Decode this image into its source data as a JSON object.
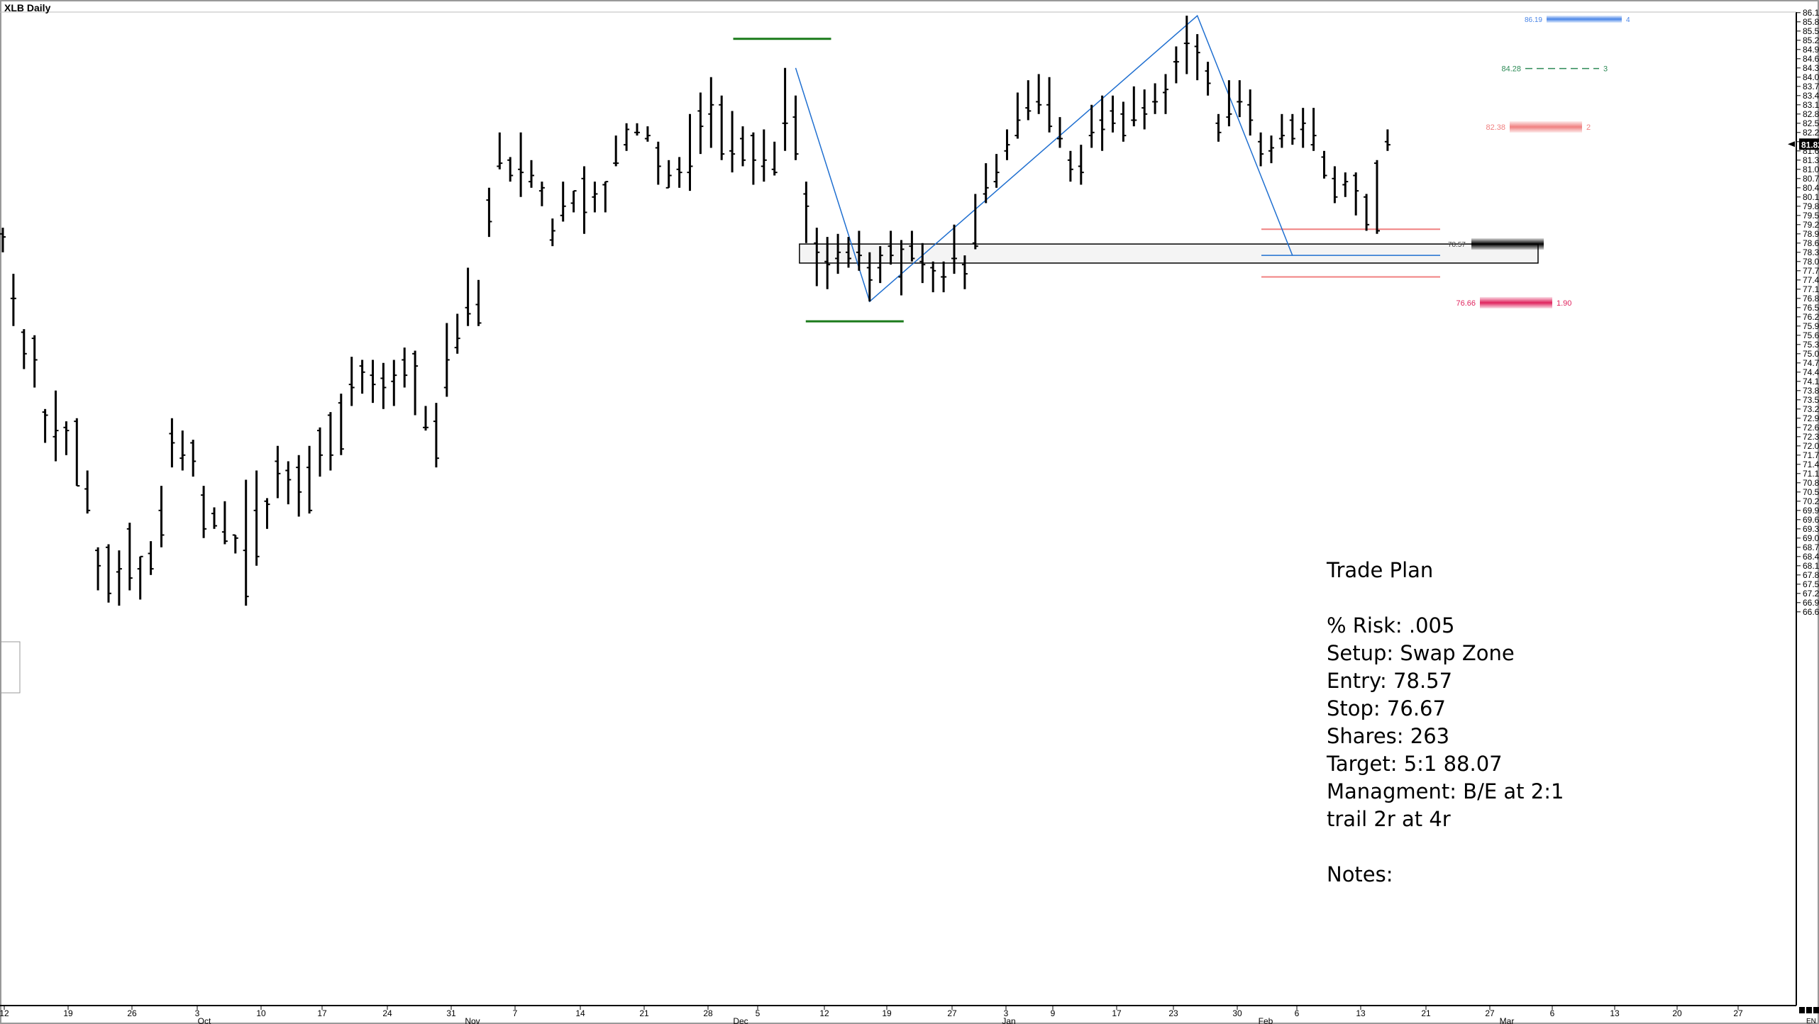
{
  "window": {
    "title": "XLB Daily"
  },
  "colors": {
    "bars": "#000000",
    "swing": "#1f6fd0",
    "pivot": "#1a7a1a",
    "zone_fill": "#f4f4f4",
    "stop_line": "#f08080",
    "target_label": "#2e8b57",
    "stop_label": "#e0245e",
    "entry_label": "#404040"
  },
  "chart_data": {
    "type": "ohlc",
    "title": "XLB Daily",
    "ylim": [
      66.5,
      86.2
    ],
    "y_ticks": [
      "86.10",
      "85.80",
      "85.50",
      "85.20",
      "84.90",
      "84.60",
      "84.30",
      "84.00",
      "83.70",
      "83.40",
      "83.10",
      "82.80",
      "82.50",
      "82.20",
      "81.90",
      "81.60",
      "81.30",
      "81.00",
      "80.70",
      "80.40",
      "80.10",
      "79.80",
      "79.50",
      "79.20",
      "78.90",
      "78.60",
      "78.30",
      "78.00",
      "77.70",
      "77.40",
      "77.10",
      "76.80",
      "76.50",
      "76.20",
      "75.90",
      "75.60",
      "75.30",
      "75.00",
      "74.70",
      "74.40",
      "74.10",
      "73.80",
      "73.50",
      "73.20",
      "72.90",
      "72.60",
      "72.30",
      "72.00",
      "71.70",
      "71.40",
      "71.10",
      "70.80",
      "70.50",
      "70.20",
      "69.90",
      "69.60",
      "69.30",
      "69.00",
      "68.70",
      "68.40",
      "68.10",
      "67.80",
      "67.50",
      "67.20",
      "66.90",
      "66.60"
    ],
    "x_day_ticks": [
      "12",
      "19",
      "26",
      "3",
      "10",
      "17",
      "24",
      "31",
      "7",
      "14",
      "21",
      "28",
      "5",
      "12",
      "19",
      "27",
      "3",
      "9",
      "17",
      "23",
      "30",
      "6",
      "13",
      "21",
      "27",
      "6",
      "13",
      "20",
      "27"
    ],
    "x_month_ticks": [
      "Oct",
      "Nov",
      "Dec",
      "Jan",
      "Feb",
      "Mar"
    ],
    "last_price": "81.82",
    "bars": [
      [
        78.9,
        79.1,
        78.3,
        78.8
      ],
      [
        76.8,
        77.6,
        75.9,
        76.8
      ],
      [
        75.7,
        75.8,
        74.5,
        75.0
      ],
      [
        75.5,
        75.6,
        73.9,
        74.8
      ],
      [
        73.1,
        73.2,
        72.1,
        73.0
      ],
      [
        72.3,
        73.8,
        71.5,
        72.5
      ],
      [
        72.6,
        72.8,
        71.7,
        72.5
      ],
      [
        72.8,
        72.9,
        70.7,
        70.7
      ],
      [
        70.6,
        71.2,
        69.8,
        69.9
      ],
      [
        68.6,
        68.7,
        67.3,
        68.1
      ],
      [
        68.7,
        68.8,
        66.9,
        67.2
      ],
      [
        67.9,
        68.6,
        66.8,
        68.0
      ],
      [
        69.3,
        69.5,
        67.3,
        67.7
      ],
      [
        68.0,
        68.4,
        67.0,
        68.4
      ],
      [
        68.5,
        68.9,
        67.8,
        68.0
      ],
      [
        69.9,
        70.7,
        68.7,
        69.1
      ],
      [
        72.4,
        72.9,
        71.3,
        72.1
      ],
      [
        71.6,
        72.5,
        71.2,
        71.7
      ],
      [
        72.1,
        72.2,
        71.0,
        71.5
      ],
      [
        70.4,
        70.7,
        69.0,
        69.3
      ],
      [
        69.8,
        70.0,
        69.3,
        69.4
      ],
      [
        69.2,
        70.2,
        68.8,
        68.9
      ],
      [
        69.1,
        69.1,
        68.5,
        69.0
      ],
      [
        68.6,
        70.9,
        66.8,
        67.1
      ],
      [
        69.9,
        71.2,
        68.1,
        68.4
      ],
      [
        70.2,
        70.3,
        69.3,
        70.1
      ],
      [
        71.5,
        72.0,
        70.3,
        71.1
      ],
      [
        71.2,
        71.5,
        70.1,
        70.9
      ],
      [
        71.3,
        71.7,
        69.7,
        70.5
      ],
      [
        71.3,
        72.0,
        69.8,
        69.9
      ],
      [
        72.5,
        72.6,
        71.0,
        71.7
      ],
      [
        73.0,
        73.1,
        71.2,
        71.7
      ],
      [
        73.4,
        73.7,
        71.7,
        71.9
      ],
      [
        74.0,
        74.9,
        73.3,
        73.9
      ],
      [
        74.6,
        74.8,
        73.7,
        74.4
      ],
      [
        74.3,
        74.8,
        73.4,
        74.0
      ],
      [
        74.2,
        74.7,
        73.2,
        73.9
      ],
      [
        74.1,
        74.8,
        73.3,
        74.3
      ],
      [
        74.8,
        75.2,
        73.9,
        74.3
      ],
      [
        75.0,
        75.1,
        73.0,
        74.6
      ],
      [
        72.6,
        73.3,
        72.5,
        72.6
      ],
      [
        72.8,
        73.4,
        71.3,
        71.6
      ],
      [
        73.9,
        76.0,
        73.6,
        74.8
      ],
      [
        75.2,
        76.3,
        75.0,
        75.5
      ],
      [
        76.5,
        77.8,
        75.9,
        76.3
      ],
      [
        76.6,
        77.4,
        75.9,
        76.0
      ],
      [
        80.0,
        80.4,
        78.8,
        79.3
      ],
      [
        81.1,
        82.2,
        81.0,
        81.2
      ],
      [
        81.3,
        81.4,
        80.6,
        80.8
      ],
      [
        81.0,
        82.2,
        80.1,
        80.9
      ],
      [
        80.6,
        81.3,
        80.4,
        80.8
      ],
      [
        80.3,
        80.6,
        79.8,
        80.4
      ],
      [
        78.7,
        79.4,
        78.5,
        79.0
      ],
      [
        79.5,
        80.6,
        79.3,
        79.8
      ],
      [
        79.9,
        80.3,
        79.6,
        80.3
      ],
      [
        80.7,
        81.1,
        78.9,
        79.6
      ],
      [
        80.1,
        80.6,
        79.6,
        80.2
      ],
      [
        80.5,
        80.6,
        79.6,
        80.6
      ],
      [
        81.2,
        82.1,
        81.1,
        81.2
      ],
      [
        81.8,
        82.5,
        81.6,
        82.3
      ],
      [
        82.2,
        82.5,
        82.1,
        82.2
      ],
      [
        82.0,
        82.4,
        81.9,
        82.1
      ],
      [
        81.7,
        81.9,
        80.5,
        81.1
      ],
      [
        80.4,
        81.3,
        80.4,
        80.8
      ],
      [
        81.0,
        81.4,
        80.4,
        80.9
      ],
      [
        80.9,
        82.8,
        80.3,
        81.1
      ],
      [
        82.9,
        83.5,
        81.5,
        82.4
      ],
      [
        82.8,
        84.0,
        81.7,
        83.1
      ],
      [
        83.1,
        83.4,
        81.3,
        81.5
      ],
      [
        81.6,
        82.9,
        80.9,
        81.5
      ],
      [
        82.0,
        82.4,
        81.1,
        81.3
      ],
      [
        82.1,
        82.2,
        80.5,
        81.3
      ],
      [
        81.1,
        82.3,
        80.6,
        81.3
      ],
      [
        81.0,
        81.9,
        80.8,
        80.9
      ],
      [
        82.5,
        84.3,
        81.6,
        82.5
      ],
      [
        82.7,
        83.4,
        81.3,
        81.5
      ],
      [
        80.2,
        80.6,
        78.6,
        79.8
      ],
      [
        78.6,
        79.1,
        77.2,
        78.3
      ],
      [
        78.0,
        78.8,
        77.1,
        77.9
      ],
      [
        78.1,
        78.9,
        77.6,
        78.3
      ],
      [
        78.3,
        78.8,
        77.8,
        78.1
      ],
      [
        78.3,
        79.0,
        77.7,
        78.2
      ],
      [
        77.8,
        78.3,
        76.7,
        77.4
      ],
      [
        77.8,
        78.5,
        77.3,
        78.2
      ],
      [
        78.5,
        79.0,
        77.9,
        78.2
      ],
      [
        77.5,
        78.7,
        76.9,
        78.4
      ],
      [
        78.5,
        79.0,
        78.0,
        78.1
      ],
      [
        78.0,
        78.6,
        77.3,
        77.9
      ],
      [
        77.8,
        78.0,
        77.0,
        77.7
      ],
      [
        77.5,
        78.0,
        77.0,
        77.5
      ],
      [
        78.1,
        79.2,
        77.6,
        78.1
      ],
      [
        77.9,
        78.2,
        77.1,
        77.6
      ],
      [
        78.6,
        80.2,
        78.4,
        78.5
      ],
      [
        80.2,
        81.2,
        79.9,
        80.4
      ],
      [
        80.6,
        81.5,
        80.4,
        80.9
      ],
      [
        81.6,
        82.3,
        81.3,
        81.8
      ],
      [
        82.1,
        83.5,
        82.0,
        82.6
      ],
      [
        83.0,
        83.9,
        82.6,
        82.9
      ],
      [
        83.2,
        84.1,
        82.8,
        83.1
      ],
      [
        83.1,
        84.0,
        82.2,
        82.4
      ],
      [
        82.0,
        82.7,
        81.7,
        82.0
      ],
      [
        81.3,
        81.6,
        80.6,
        81.0
      ],
      [
        81.1,
        81.8,
        80.5,
        80.9
      ],
      [
        82.1,
        83.1,
        81.7,
        82.2
      ],
      [
        82.6,
        83.4,
        81.6,
        82.3
      ],
      [
        82.9,
        83.4,
        82.2,
        82.5
      ],
      [
        82.8,
        83.2,
        81.9,
        82.1
      ],
      [
        82.6,
        83.7,
        82.4,
        82.6
      ],
      [
        83.0,
        83.6,
        82.3,
        82.8
      ],
      [
        83.2,
        83.8,
        82.8,
        83.2
      ],
      [
        83.5,
        84.1,
        82.8,
        83.6
      ],
      [
        84.5,
        85.0,
        83.8,
        84.5
      ],
      [
        85.1,
        86.0,
        84.1,
        85.1
      ],
      [
        85.0,
        85.4,
        83.9,
        84.8
      ],
      [
        84.2,
        84.5,
        83.4,
        83.8
      ],
      [
        82.5,
        82.8,
        81.9,
        82.2
      ],
      [
        82.7,
        83.9,
        82.4,
        82.8
      ],
      [
        83.2,
        83.9,
        82.7,
        83.2
      ],
      [
        83.1,
        83.6,
        82.1,
        82.6
      ],
      [
        81.9,
        82.2,
        81.1,
        81.5
      ],
      [
        81.6,
        82.1,
        81.2,
        81.7
      ],
      [
        82.0,
        82.8,
        81.7,
        82.1
      ],
      [
        82.6,
        82.8,
        81.8,
        82.0
      ],
      [
        82.3,
        83.0,
        81.7,
        82.5
      ],
      [
        81.8,
        83.0,
        81.6,
        82.1
      ],
      [
        81.4,
        81.6,
        80.7,
        80.8
      ],
      [
        80.7,
        81.1,
        79.9,
        80.1
      ],
      [
        80.5,
        80.9,
        80.1,
        80.6
      ],
      [
        80.8,
        80.9,
        79.5,
        80.3
      ],
      [
        80.1,
        80.2,
        79.0,
        79.2
      ],
      [
        81.2,
        81.3,
        78.9,
        79.0
      ],
      [
        81.9,
        82.3,
        81.6,
        81.8
      ]
    ],
    "swing_points": [
      {
        "date_index": 75,
        "price": 84.3
      },
      {
        "date_index": 82,
        "price": 76.7
      },
      {
        "date_index": 113,
        "price": 86.0
      },
      {
        "date_index": 122,
        "price": 78.2
      }
    ],
    "levels": {
      "zone": {
        "top": 78.57,
        "bottom": 77.95
      },
      "entry": "78.57",
      "stop": {
        "value": "76.66",
        "label": "1.90"
      },
      "target_2": {
        "value": "82.38",
        "label": "2"
      },
      "target_3": {
        "value": "84.28",
        "label": "3"
      },
      "target_4": {
        "value": "86.19",
        "label": "4"
      }
    }
  },
  "plan": {
    "title": "Trade Plan",
    "risk": "% Risk: .005",
    "setup": "Setup: Swap Zone",
    "entry": "Entry: 78.57",
    "stop": "Stop: 76.67",
    "shares": "Shares: 263",
    "target": "Target: 5:1 88.07",
    "management": "Managment: B/E at 2:1",
    "trail": "trail 2r at 4r",
    "notes": "Notes:"
  },
  "corner_label": "EN"
}
